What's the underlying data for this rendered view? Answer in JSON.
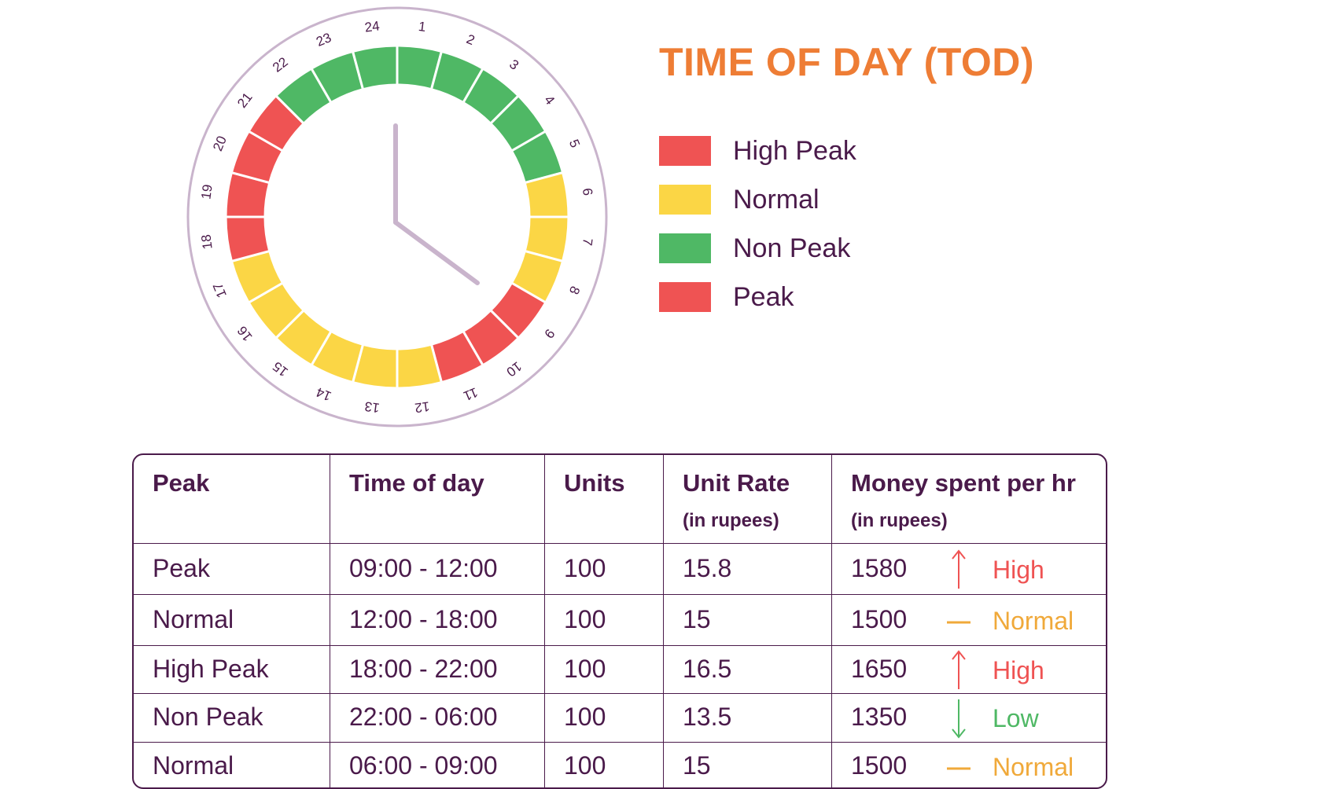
{
  "title": "TIME OF DAY (TOD)",
  "colors": {
    "high_peak": "#ef5353",
    "normal": "#fbd645",
    "non_peak": "#4fb865",
    "peak": "#ef5353",
    "title": "#ee7d35",
    "text": "#4a1a4a",
    "clock_ring": "#c9b4cc",
    "clock_hands": "#c9b4cc",
    "trend_high": "#ef5353",
    "trend_normal": "#f0a93a",
    "trend_low": "#4fb865"
  },
  "legend": [
    {
      "label": "High Peak",
      "color": "#ef5353"
    },
    {
      "label": "Normal",
      "color": "#fbd645"
    },
    {
      "label": "Non Peak",
      "color": "#4fb865"
    },
    {
      "label": "Peak",
      "color": "#ef5353"
    }
  ],
  "clock": {
    "hour_labels": [
      "1",
      "2",
      "3",
      "4",
      "5",
      "6",
      "7",
      "8",
      "9",
      "10",
      "11",
      "12",
      "13",
      "14",
      "15",
      "16",
      "17",
      "18",
      "19",
      "20",
      "21",
      "22",
      "23",
      "24"
    ],
    "hour_categories": [
      "non_peak",
      "non_peak",
      "non_peak",
      "non_peak",
      "non_peak",
      "normal",
      "normal",
      "normal",
      "peak",
      "peak",
      "peak",
      "normal",
      "normal",
      "normal",
      "normal",
      "normal",
      "normal",
      "high_peak",
      "high_peak",
      "high_peak",
      "high_peak",
      "non_peak",
      "non_peak",
      "non_peak"
    ],
    "shown_time": "04:00"
  },
  "table": {
    "headers": [
      {
        "main": "Peak",
        "sub": ""
      },
      {
        "main": "Time of day",
        "sub": ""
      },
      {
        "main": "Units",
        "sub": ""
      },
      {
        "main": "Unit Rate",
        "sub": "(in rupees)"
      },
      {
        "main": "Money spent per hr",
        "sub": "(in rupees)"
      }
    ],
    "rows": [
      {
        "peak": "Peak",
        "time": "09:00 - 12:00",
        "units": "100",
        "rate": "15.8",
        "money": "1580",
        "trend": "High",
        "trend_icon": "arrow-up-icon",
        "trend_color": "#ef5353"
      },
      {
        "peak": "Normal",
        "time": "12:00 - 18:00",
        "units": "100",
        "rate": "15",
        "money": "1500",
        "trend": "Normal",
        "trend_icon": "dash-icon",
        "trend_color": "#f0a93a"
      },
      {
        "peak": "High Peak",
        "time": "18:00 - 22:00",
        "units": "100",
        "rate": "16.5",
        "money": "1650",
        "trend": "High",
        "trend_icon": "arrow-up-icon",
        "trend_color": "#ef5353"
      },
      {
        "peak": "Non Peak",
        "time": "22:00 - 06:00",
        "units": "100",
        "rate": "13.5",
        "money": "1350",
        "trend": "Low",
        "trend_icon": "arrow-down-icon",
        "trend_color": "#4fb865"
      },
      {
        "peak": "Normal",
        "time": "06:00 - 09:00",
        "units": "100",
        "rate": "15",
        "money": "1500",
        "trend": "Normal",
        "trend_icon": "dash-icon",
        "trend_color": "#f0a93a"
      }
    ]
  }
}
